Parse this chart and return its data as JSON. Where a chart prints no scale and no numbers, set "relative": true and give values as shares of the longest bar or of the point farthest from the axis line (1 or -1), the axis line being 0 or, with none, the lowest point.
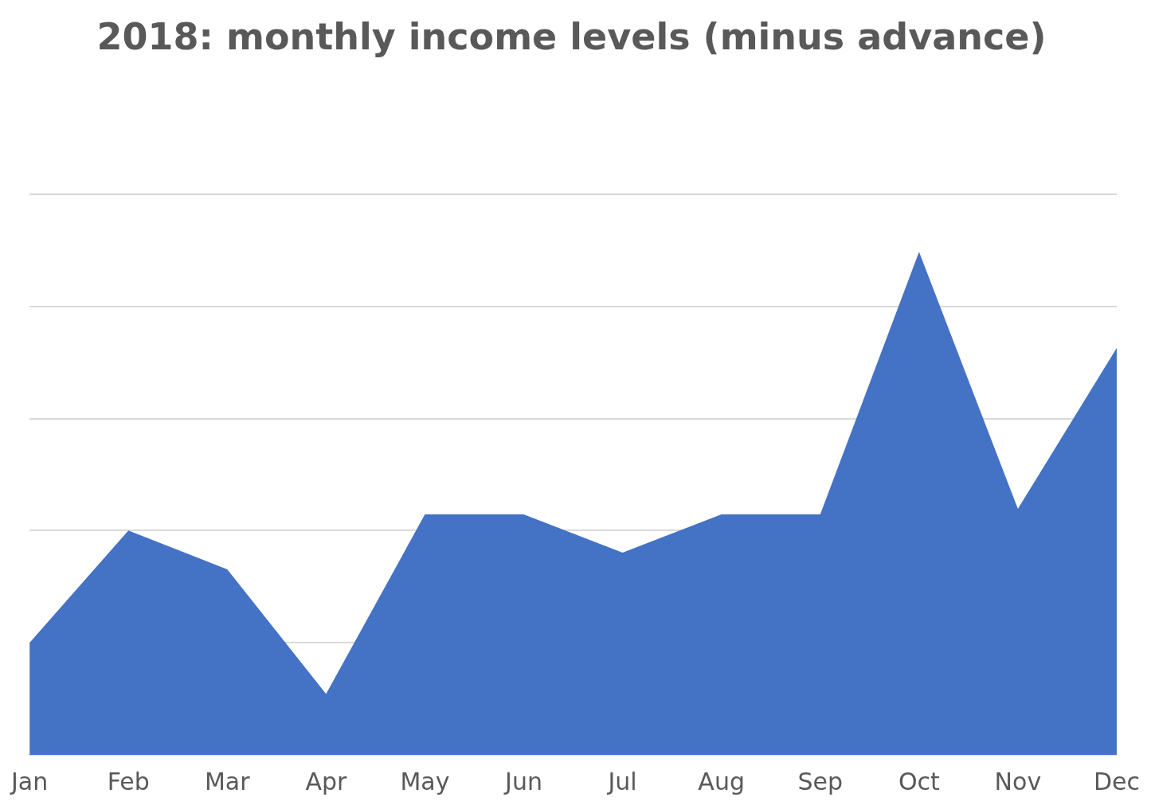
{
  "chart_data": {
    "type": "area",
    "title": "2018: monthly income levels (minus advance)",
    "relative": true,
    "grid": "y",
    "legend": false,
    "categories": [
      "Jan",
      "Feb",
      "Mar",
      "Apr",
      "May",
      "Jun",
      "Jul",
      "Aug",
      "Sep",
      "Oct",
      "Nov",
      "Dec"
    ],
    "series": [
      {
        "color": "#4472c4",
        "values": [
          0.223,
          0.446,
          0.369,
          0.121,
          0.478,
          0.478,
          0.402,
          0.478,
          0.478,
          1,
          0.489,
          0.809
        ]
      }
    ]
  }
}
